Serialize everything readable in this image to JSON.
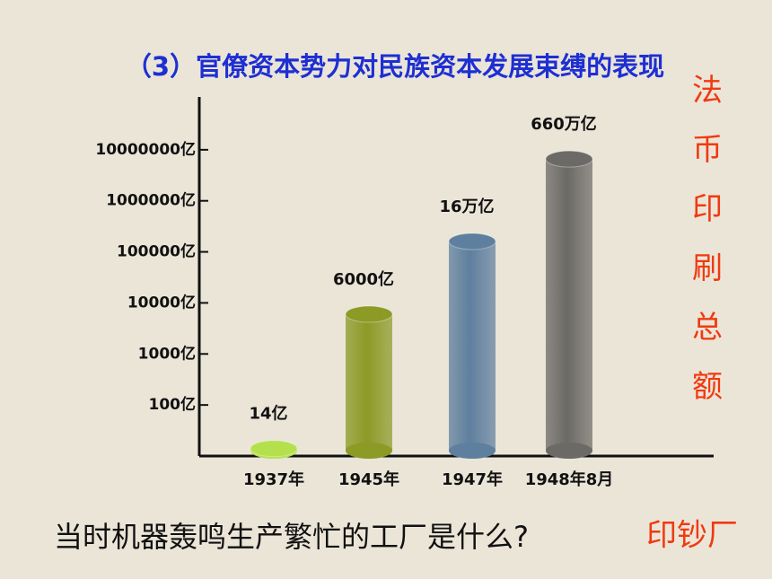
{
  "chart_data": {
    "type": "bar",
    "title": "（3）官僚资本势力对民族资本发展束缚的表现",
    "side_label": "法币印刷总额",
    "categories": [
      "1937年",
      "1945年",
      "1947年",
      "1948年8月"
    ],
    "values": [
      14,
      6000,
      160000,
      6600000
    ],
    "value_labels": [
      "14亿",
      "6000亿",
      "16万亿",
      "660万亿"
    ],
    "colors": [
      "#b5e04e",
      "#8c9a26",
      "#5e7f9e",
      "#6c6a66"
    ],
    "log_scale": true,
    "ylim": [
      10,
      100000000
    ],
    "yticks": [
      {
        "value": 100,
        "label": "100亿"
      },
      {
        "value": 1000,
        "label": "1000亿"
      },
      {
        "value": 10000,
        "label": "10000亿"
      },
      {
        "value": 100000,
        "label": "100000亿"
      },
      {
        "value": 1000000,
        "label": "1000000亿"
      },
      {
        "value": 10000000,
        "label": "10000000亿"
      }
    ]
  },
  "question": "当时机器轰鸣生产繁忙的工厂是什么?",
  "answer": "印钞厂"
}
